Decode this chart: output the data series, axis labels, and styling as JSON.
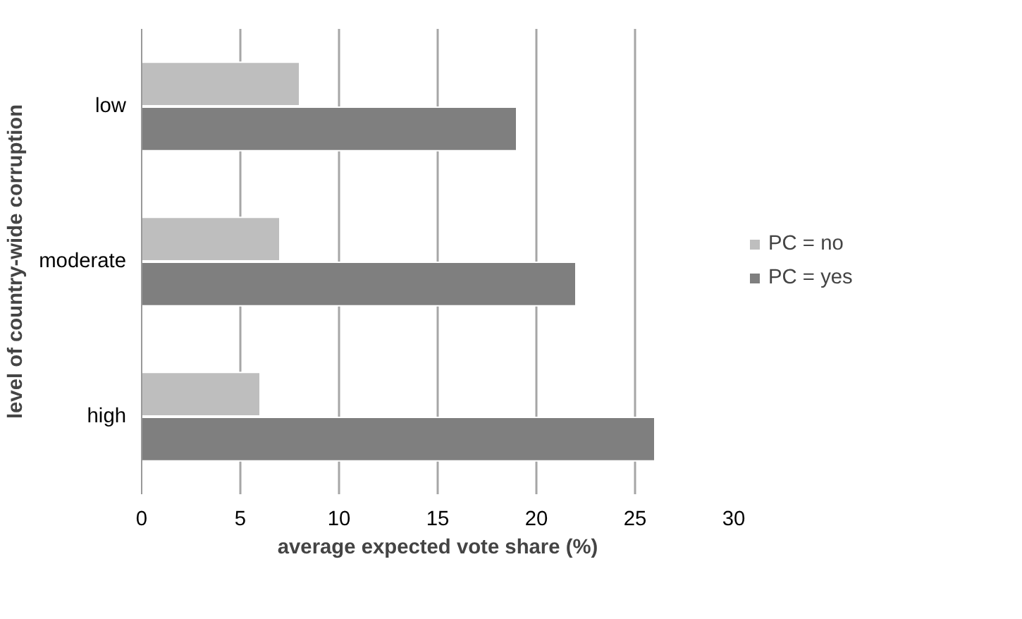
{
  "chart_data": {
    "type": "bar",
    "orientation": "horizontal",
    "xlabel": "average expected vote share (%)",
    "ylabel": "level of country-wide corruption",
    "categories": [
      "low",
      "moderate",
      "high"
    ],
    "series": [
      {
        "name": "PC = no",
        "color": "#bebebe",
        "values": [
          8,
          7,
          6
        ]
      },
      {
        "name": "PC = yes",
        "color": "#7f7f7f",
        "values": [
          19.0,
          22.0,
          26.0
        ]
      }
    ],
    "xlim": [
      0,
      30
    ],
    "xticks": [
      0,
      5,
      10,
      15,
      20,
      25,
      30
    ],
    "grid": "x",
    "legend": "right"
  }
}
